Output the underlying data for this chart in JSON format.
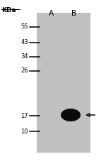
{
  "fig_width": 1.5,
  "fig_height": 2.31,
  "dpi": 100,
  "bg_color": "#ffffff",
  "gel_color": "#c0c0c0",
  "kda_label": "KDa",
  "col_labels": [
    "A",
    "B"
  ],
  "marker_kdas": [
    55,
    43,
    34,
    26,
    17,
    10
  ],
  "band_color": "#0a0a0a",
  "arrow_color": "#1a1a1a",
  "label_fontsize": 6.5,
  "marker_fontsize": 6.0,
  "col_fontsize": 7.5
}
